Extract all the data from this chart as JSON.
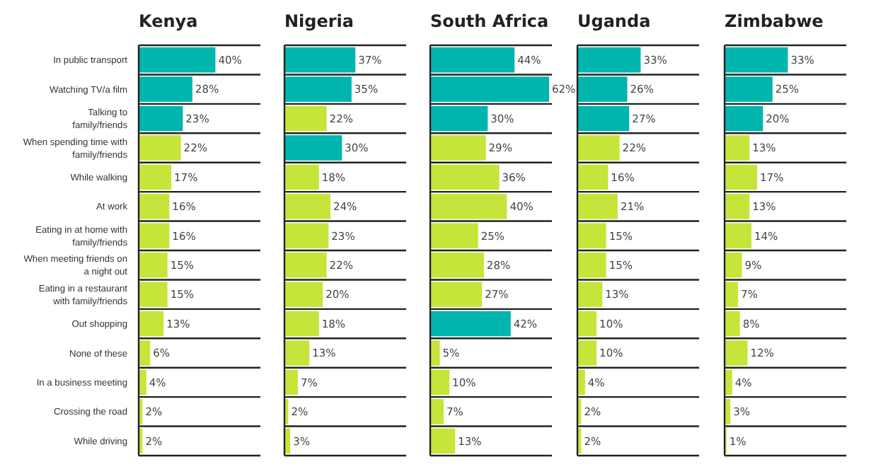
{
  "chart_data": [
    {
      "type": "bar",
      "orientation": "horizontal",
      "title": "Kenya",
      "categories": [
        "In public transport",
        "Watching TV/a film",
        "Talking to family/friends",
        "When spending time with family/friends",
        "While walking",
        "At work",
        "Eating in at home with family/friends",
        "When meeting friends on a night out",
        "Eating in a restaurant with family/friends",
        "Out shopping",
        "None of these",
        "In a business meeting",
        "Crossing the road",
        "While driving"
      ],
      "values": [
        40,
        28,
        23,
        22,
        17,
        16,
        16,
        15,
        15,
        13,
        6,
        4,
        2,
        2
      ],
      "value_labels": [
        "40%",
        "28%",
        "23%",
        "22%",
        "17%",
        "16%",
        "16%",
        "15%",
        "15%",
        "13%",
        "6%",
        "4%",
        "2%",
        "2%"
      ],
      "colors": [
        "#00b5ad",
        "#00b5ad",
        "#00b5ad",
        "#c5e53a",
        "#c5e53a",
        "#c5e53a",
        "#c5e53a",
        "#c5e53a",
        "#c5e53a",
        "#c5e53a",
        "#c5e53a",
        "#c5e53a",
        "#c5e53a",
        "#c5e53a"
      ],
      "tick_labels": "y"
    },
    {
      "type": "bar",
      "orientation": "horizontal",
      "title": "Nigeria",
      "values": [
        37,
        35,
        22,
        30,
        18,
        24,
        23,
        22,
        20,
        18,
        13,
        7,
        2,
        3
      ],
      "value_labels": [
        "37%",
        "35%",
        "22%",
        "30%",
        "18%",
        "24%",
        "23%",
        "22%",
        "20%",
        "18%",
        "13%",
        "7%",
        "2%",
        "3%"
      ],
      "colors": [
        "#00b5ad",
        "#00b5ad",
        "#c5e53a",
        "#00b5ad",
        "#c5e53a",
        "#c5e53a",
        "#c5e53a",
        "#c5e53a",
        "#c5e53a",
        "#c5e53a",
        "#c5e53a",
        "#c5e53a",
        "#c5e53a",
        "#c5e53a"
      ]
    },
    {
      "type": "bar",
      "orientation": "horizontal",
      "title": "South Africa",
      "values": [
        44,
        62,
        30,
        29,
        36,
        40,
        25,
        28,
        27,
        42,
        5,
        10,
        7,
        13
      ],
      "value_labels": [
        "44%",
        "62%",
        "30%",
        "29%",
        "36%",
        "40%",
        "25%",
        "28%",
        "27%",
        "42%",
        "5%",
        "10%",
        "7%",
        "13%"
      ],
      "colors": [
        "#00b5ad",
        "#00b5ad",
        "#00b5ad",
        "#c5e53a",
        "#c5e53a",
        "#c5e53a",
        "#c5e53a",
        "#c5e53a",
        "#c5e53a",
        "#00b5ad",
        "#c5e53a",
        "#c5e53a",
        "#c5e53a",
        "#c5e53a"
      ]
    },
    {
      "type": "bar",
      "orientation": "horizontal",
      "title": "Uganda",
      "values": [
        33,
        26,
        27,
        22,
        16,
        21,
        15,
        15,
        13,
        10,
        10,
        4,
        2,
        2
      ],
      "value_labels": [
        "33%",
        "26%",
        "27%",
        "22%",
        "16%",
        "21%",
        "15%",
        "15%",
        "13%",
        "10%",
        "10%",
        "4%",
        "2%",
        "2%"
      ],
      "colors": [
        "#00b5ad",
        "#00b5ad",
        "#00b5ad",
        "#c5e53a",
        "#c5e53a",
        "#c5e53a",
        "#c5e53a",
        "#c5e53a",
        "#c5e53a",
        "#c5e53a",
        "#c5e53a",
        "#c5e53a",
        "#c5e53a",
        "#c5e53a"
      ]
    },
    {
      "type": "bar",
      "orientation": "horizontal",
      "title": "Zimbabwe",
      "values": [
        33,
        25,
        20,
        13,
        17,
        13,
        14,
        9,
        7,
        8,
        12,
        4,
        3,
        1
      ],
      "value_labels": [
        "33%",
        "25%",
        "20%",
        "13%",
        "17%",
        "13%",
        "14%",
        "9%",
        "7%",
        "8%",
        "12%",
        "4%",
        "3%",
        "1%"
      ],
      "colors": [
        "#00b5ad",
        "#00b5ad",
        "#00b5ad",
        "#c5e53a",
        "#c5e53a",
        "#c5e53a",
        "#c5e53a",
        "#c5e53a",
        "#c5e53a",
        "#c5e53a",
        "#c5e53a",
        "#c5e53a",
        "#c5e53a",
        "#c5e53a"
      ]
    }
  ]
}
